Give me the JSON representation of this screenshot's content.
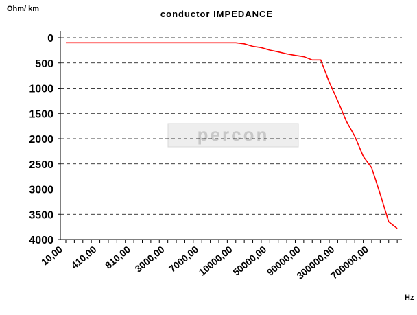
{
  "chart_data": {
    "type": "line",
    "title": "conductor IMPEDANCE",
    "y_label": "Ohm/ km",
    "x_label": "Hz",
    "watermark": "percon",
    "categories": [
      "10,00",
      null,
      null,
      null,
      "410,00",
      null,
      null,
      null,
      "810,00",
      null,
      null,
      null,
      "3000,00",
      null,
      null,
      null,
      "7000,00",
      null,
      null,
      null,
      "10000,00",
      null,
      null,
      null,
      "50000,00",
      null,
      null,
      null,
      "90000,00",
      null,
      null,
      null,
      "300000,00",
      null,
      null,
      null,
      "700000,00",
      null,
      null,
      null
    ],
    "series": [
      {
        "name": "conductor IMPEDANCE",
        "color": "#ff0000",
        "values": [
          100,
          100,
          100,
          100,
          100,
          100,
          100,
          100,
          100,
          100,
          100,
          100,
          100,
          100,
          100,
          100,
          100,
          100,
          100,
          100,
          100,
          120,
          170,
          195,
          245,
          280,
          320,
          350,
          375,
          440,
          440,
          880,
          1250,
          1650,
          1950,
          2350,
          2580,
          3100,
          3650,
          3780
        ]
      }
    ],
    "ylim": [
      0,
      4000
    ],
    "yticks": [
      0,
      500,
      1000,
      1500,
      2000,
      2500,
      3000,
      3500,
      4000
    ],
    "y_inverted": true,
    "grid": true
  }
}
